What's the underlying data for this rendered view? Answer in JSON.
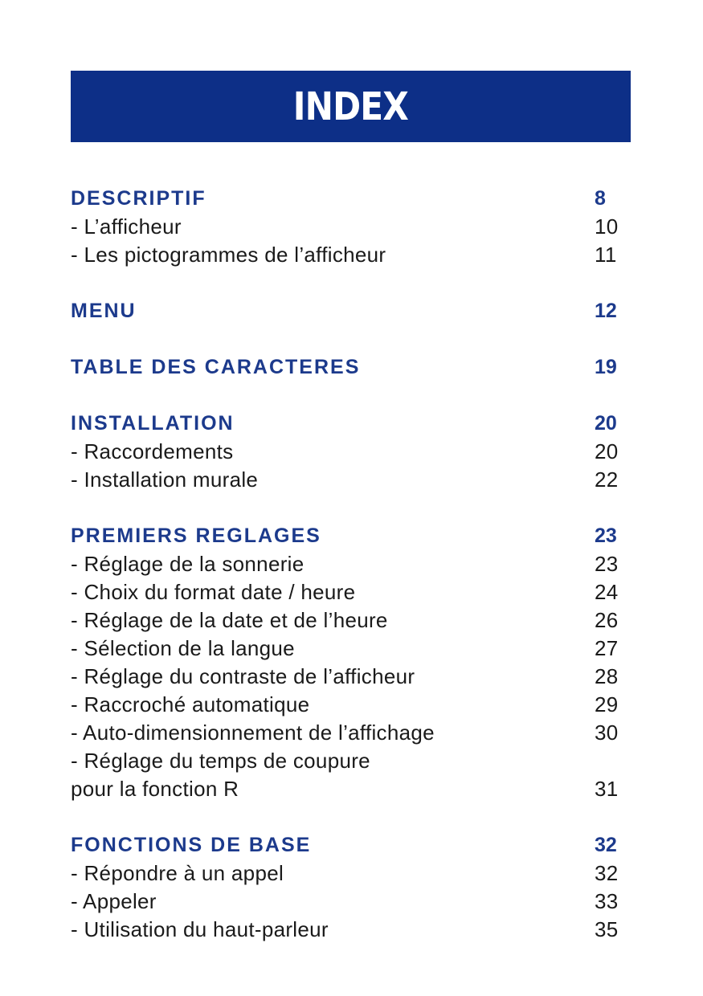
{
  "title": "INDEX",
  "colors": {
    "banner": "#0d2f87",
    "heading": "#1c3a8c"
  },
  "sections": [
    {
      "heading": "DESCRIPTIF",
      "page": "8",
      "items": [
        {
          "label": "- L’afficheur",
          "page": "10"
        },
        {
          "label": "- Les pictogrammes de l’afficheur",
          "page": "11"
        }
      ]
    },
    {
      "heading": "MENU",
      "page": "12",
      "items": []
    },
    {
      "heading": "TABLE DES CARACTERES",
      "page": "19",
      "items": []
    },
    {
      "heading": "INSTALLATION",
      "page": "20",
      "items": [
        {
          "label": "- Raccordements",
          "page": "20"
        },
        {
          "label": "- Installation murale",
          "page": "22"
        }
      ]
    },
    {
      "heading": "PREMIERS REGLAGES",
      "page": "23",
      "items": [
        {
          "label": "- Réglage de la sonnerie",
          "page": "23"
        },
        {
          "label": "- Choix du format date / heure",
          "page": "24"
        },
        {
          "label": "- Réglage de la date et de l’heure",
          "page": "26"
        },
        {
          "label": "- Sélection de la langue",
          "page": "27"
        },
        {
          "label": "- Réglage du contraste de l’afficheur",
          "page": "28"
        },
        {
          "label": "- Raccroché automatique",
          "page": "29"
        },
        {
          "label": "- Auto-dimensionnement de l’affichage",
          "page": "30"
        },
        {
          "label": "- Réglage du temps de coupure",
          "page": ""
        },
        {
          "label": "pour la fonction R",
          "page": "31"
        }
      ]
    },
    {
      "heading": "FONCTIONS DE BASE",
      "page": "32",
      "items": [
        {
          "label": "- Répondre à un appel",
          "page": "32"
        },
        {
          "label": "- Appeler",
          "page": "33"
        },
        {
          "label": "- Utilisation du haut-parleur",
          "page": "35"
        }
      ]
    }
  ]
}
